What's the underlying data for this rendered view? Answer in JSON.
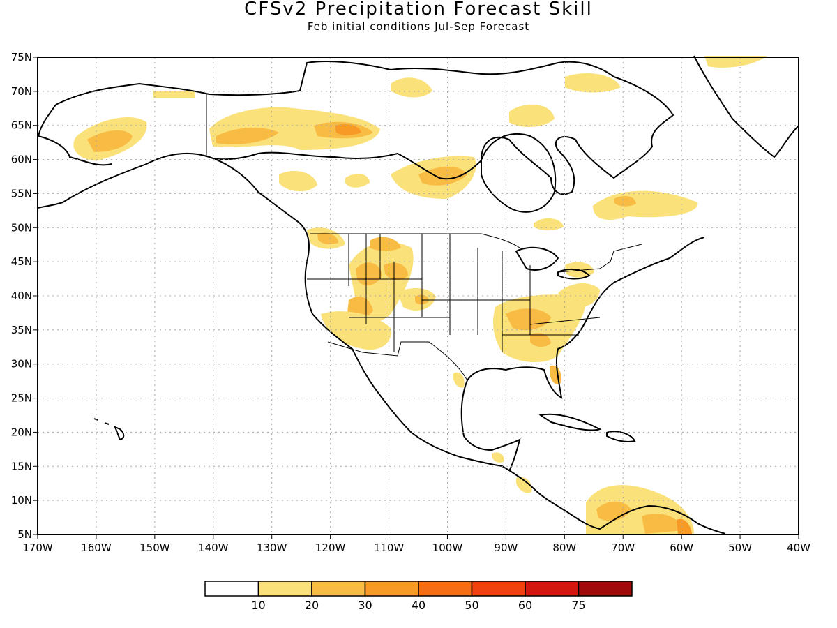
{
  "title": "CFSv2 Precipitation Forecast Skill",
  "subtitle": "Feb initial conditions  Jul-Sep Forecast",
  "map": {
    "region": "North America",
    "lon_range": [
      -170,
      -40
    ],
    "lat_range": [
      5,
      75
    ],
    "lat_ticks": [
      "5N",
      "10N",
      "15N",
      "20N",
      "25N",
      "30N",
      "35N",
      "40N",
      "45N",
      "50N",
      "55N",
      "60N",
      "65N",
      "70N",
      "75N"
    ],
    "lon_ticks": [
      "170W",
      "160W",
      "150W",
      "140W",
      "130W",
      "120W",
      "110W",
      "100W",
      "90W",
      "80W",
      "70W",
      "60W",
      "50W",
      "40W"
    ],
    "gridlines": "dotted",
    "skill_regions": [
      {
        "name": "Alaska west",
        "level": "10-20",
        "color": "#fae17a"
      },
      {
        "name": "Yukon/NW Territories",
        "level": "10-30",
        "color": "#f8bc45"
      },
      {
        "name": "Hudson Bay west",
        "level": "10-30",
        "color": "#f8bc45"
      },
      {
        "name": "US Southwest / Great Basin",
        "level": "10-30",
        "color": "#f8bc45"
      },
      {
        "name": "US Southeast",
        "level": "10-30",
        "color": "#f8bc45"
      },
      {
        "name": "Labrador / Quebec",
        "level": "10-20",
        "color": "#fae17a"
      },
      {
        "name": "Northern South America",
        "level": "10-40",
        "color": "#f79b26"
      },
      {
        "name": "Greenland coast",
        "level": "10-20",
        "color": "#fae17a"
      }
    ]
  },
  "colorbar": {
    "labels": [
      "10",
      "20",
      "30",
      "40",
      "50",
      "60",
      "75"
    ],
    "colors": [
      "#ffffff",
      "#fae17a",
      "#f8bc45",
      "#f79b26",
      "#f56e14",
      "#f0420f",
      "#d2180e",
      "#a10a0a"
    ]
  }
}
